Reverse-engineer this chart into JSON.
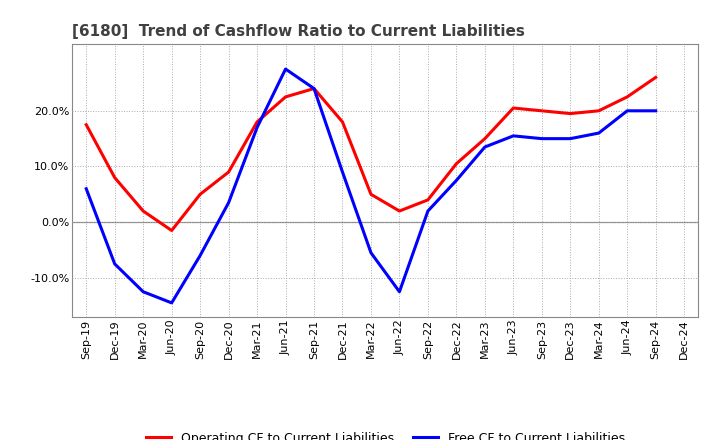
{
  "title": "[6180]  Trend of Cashflow Ratio to Current Liabilities",
  "x_labels": [
    "Sep-19",
    "Dec-19",
    "Mar-20",
    "Jun-20",
    "Sep-20",
    "Dec-20",
    "Mar-21",
    "Jun-21",
    "Sep-21",
    "Dec-21",
    "Mar-22",
    "Jun-22",
    "Sep-22",
    "Dec-22",
    "Mar-23",
    "Jun-23",
    "Sep-23",
    "Dec-23",
    "Mar-24",
    "Jun-24",
    "Sep-24",
    "Dec-24"
  ],
  "operating_cf": [
    17.5,
    8.0,
    2.0,
    -1.5,
    5.0,
    9.0,
    18.0,
    22.5,
    24.0,
    18.0,
    5.0,
    2.0,
    4.0,
    10.5,
    15.0,
    20.5,
    20.0,
    19.5,
    20.0,
    22.5,
    26.0,
    null
  ],
  "free_cf": [
    6.0,
    -7.5,
    -12.5,
    -14.5,
    -6.0,
    3.5,
    17.0,
    27.5,
    24.0,
    9.0,
    -5.5,
    -12.5,
    2.0,
    7.5,
    13.5,
    15.5,
    15.0,
    15.0,
    16.0,
    20.0,
    20.0,
    null
  ],
  "operating_color": "#ff0000",
  "free_color": "#0000ff",
  "ylim": [
    -17,
    32
  ],
  "yticks": [
    -10.0,
    0.0,
    10.0,
    20.0
  ],
  "background_color": "#ffffff",
  "plot_bg_color": "#ffffff",
  "grid_color": "#aaaaaa",
  "legend_labels": [
    "Operating CF to Current Liabilities",
    "Free CF to Current Liabilities"
  ],
  "title_color": "#404040",
  "title_fontsize": 11
}
